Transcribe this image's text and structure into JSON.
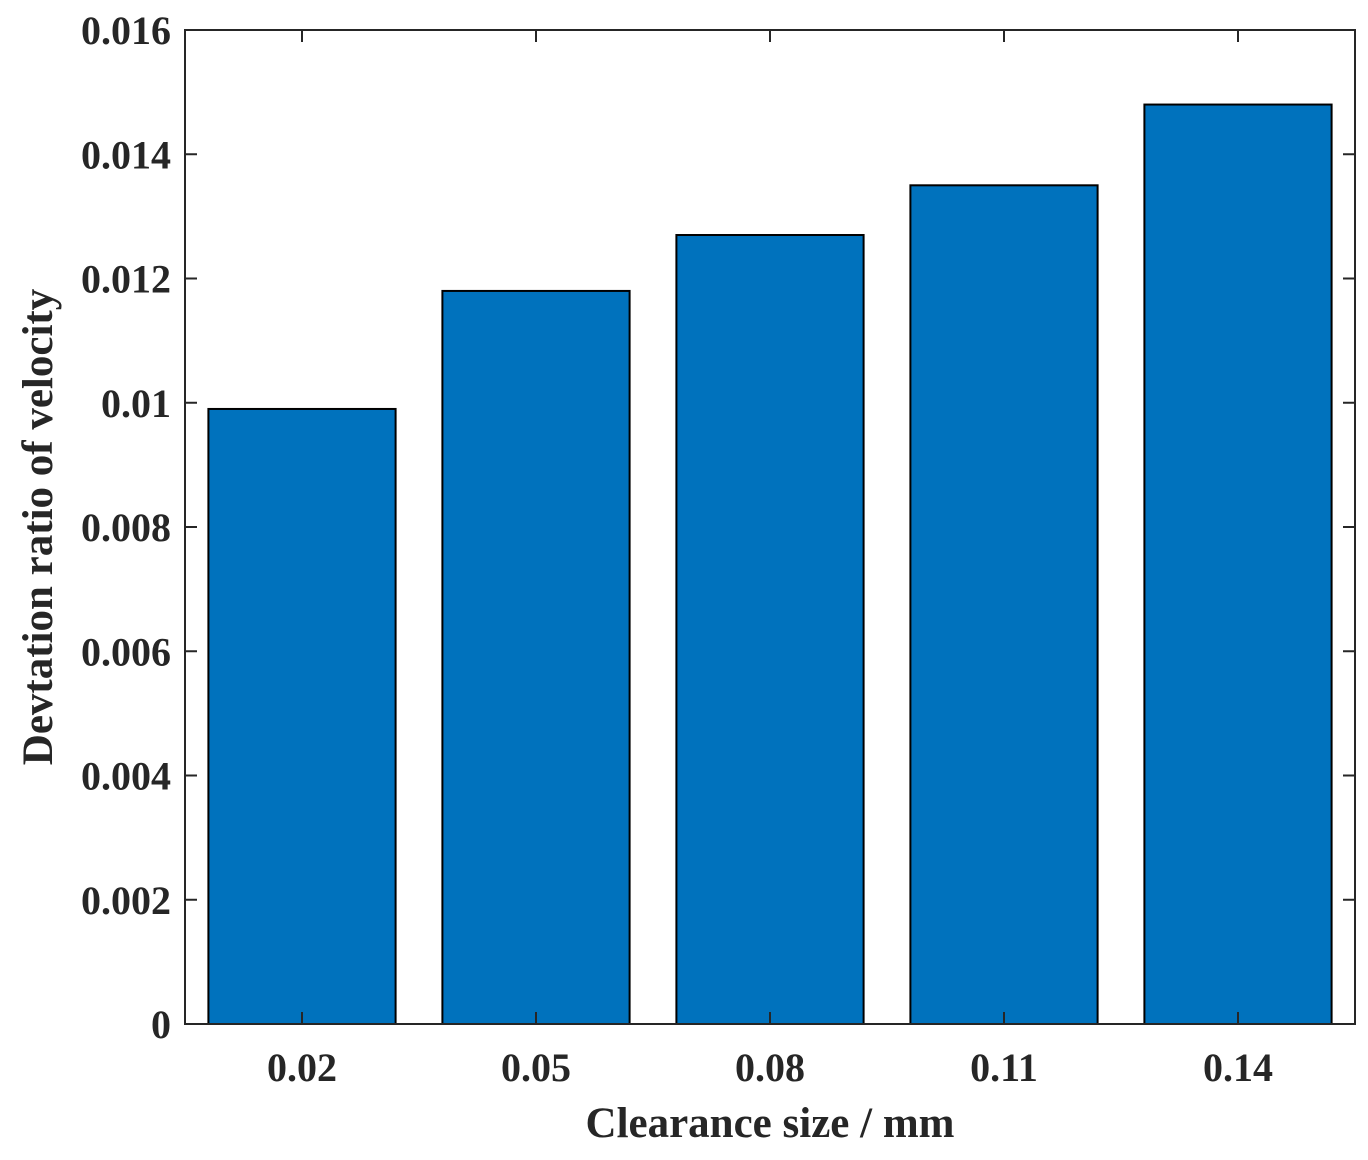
{
  "chart_data": {
    "type": "bar",
    "title": "",
    "xlabel": "Clearance size / mm",
    "ylabel": "Devtation ratio of velocity",
    "categories": [
      "0.02",
      "0.05",
      "0.08",
      "0.11",
      "0.14"
    ],
    "values": [
      0.0099,
      0.0118,
      0.0127,
      0.0135,
      0.0148
    ],
    "ylim": [
      0,
      0.016
    ],
    "yticks": [
      "0",
      "0.002",
      "0.004",
      "0.006",
      "0.008",
      "0.01",
      "0.012",
      "0.014",
      "0.016"
    ],
    "grid": false,
    "legend": "none",
    "colors": {
      "bar": "#0072BD",
      "bar_edge": "#000000",
      "axes": "#262626"
    }
  }
}
